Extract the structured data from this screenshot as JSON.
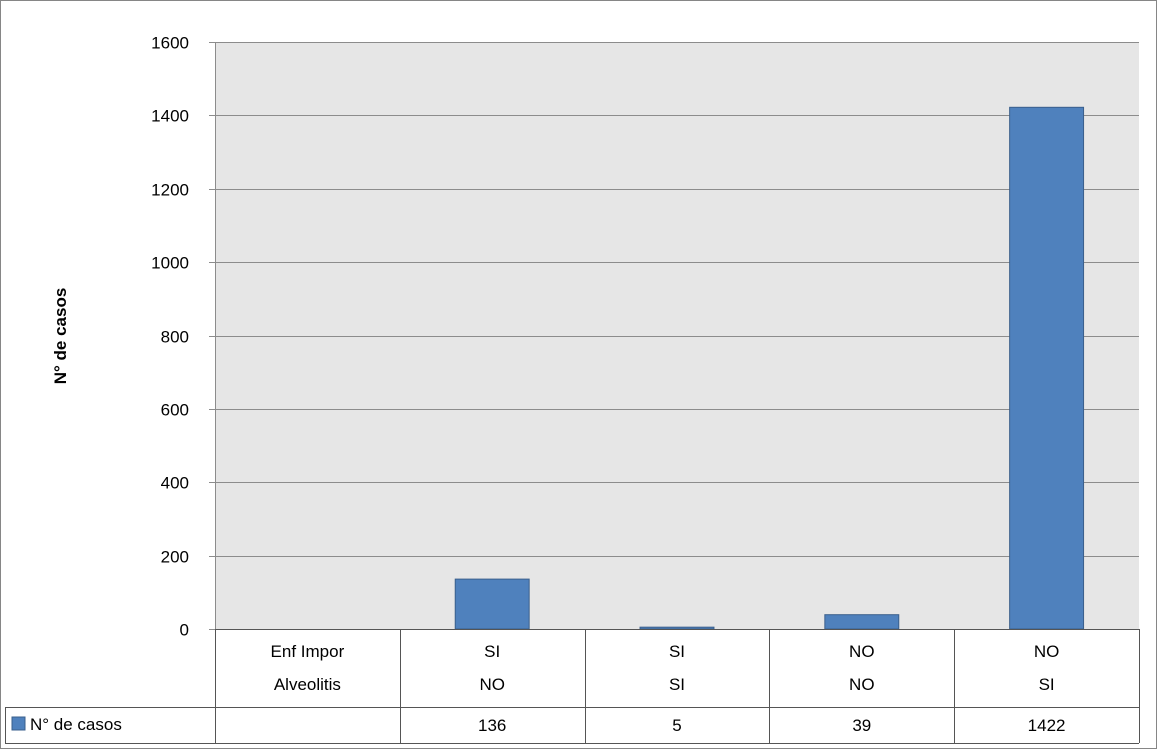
{
  "chart_data": {
    "type": "bar",
    "title": "",
    "xlabel": "",
    "ylabel": "N° de casos",
    "ylim": [
      0,
      1600
    ],
    "yticks": [
      0,
      200,
      400,
      600,
      800,
      1000,
      1200,
      1400,
      1600
    ],
    "grid": true,
    "legend_placement": "bottom-left, inside data table",
    "row_headers": [
      "Enf Impor",
      "Alveolitis"
    ],
    "categories": [
      {
        "label": "",
        "row1": "",
        "row2": ""
      },
      {
        "label": "SI / NO",
        "row1": "SI",
        "row2": "NO"
      },
      {
        "label": "SI / SI",
        "row1": "SI",
        "row2": "SI"
      },
      {
        "label": "NO / NO",
        "row1": "NO",
        "row2": "NO"
      },
      {
        "label": "NO / SI",
        "row1": "NO",
        "row2": "SI"
      }
    ],
    "series": [
      {
        "name": "N° de casos",
        "color": "#4f81bd",
        "values": [
          null,
          136,
          5,
          39,
          1422
        ],
        "value_labels": [
          "",
          "136",
          "5",
          "39",
          "1422"
        ]
      }
    ]
  },
  "colors": {
    "plot_background": "#e6e6e6",
    "bar_fill": "#4f81bd",
    "bar_stroke": "#3a5f8c",
    "grid": "#8c8c8c"
  }
}
